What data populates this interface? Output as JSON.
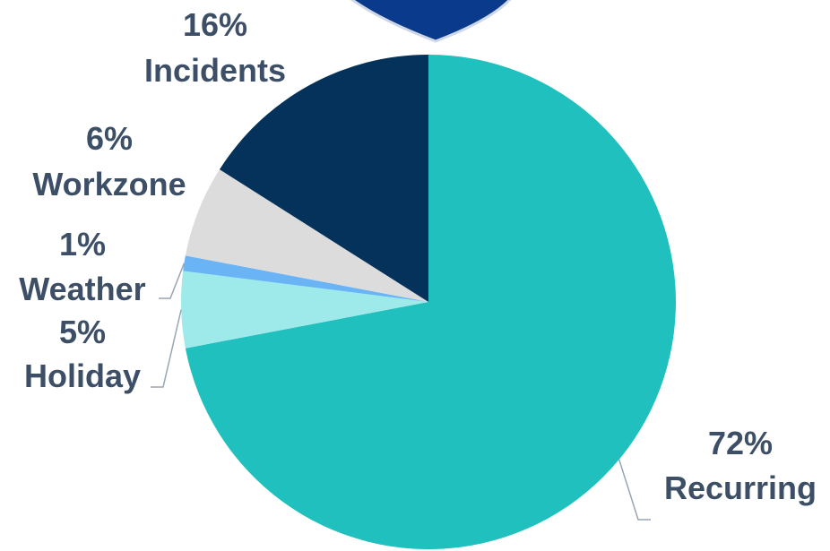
{
  "chart_data": {
    "type": "pie",
    "slices": [
      {
        "label": "Recurring",
        "value": 72,
        "value_text": "72%",
        "color": "#1fc0bd"
      },
      {
        "label": "Holiday",
        "value": 5,
        "value_text": "5%",
        "color": "#9eeaea"
      },
      {
        "label": "Weather",
        "value": 1,
        "value_text": "1%",
        "color": "#6ab4f5"
      },
      {
        "label": "Workzone",
        "value": 6,
        "value_text": "6%",
        "color": "#dcdcdc"
      },
      {
        "label": "Incidents",
        "value": 16,
        "value_text": "16%",
        "color": "#04325a"
      }
    ],
    "start": "12 o'clock",
    "direction": "clockwise",
    "legend": "none"
  },
  "badge": {
    "color": "#0a3a8c",
    "border": "#cfd8e6"
  }
}
